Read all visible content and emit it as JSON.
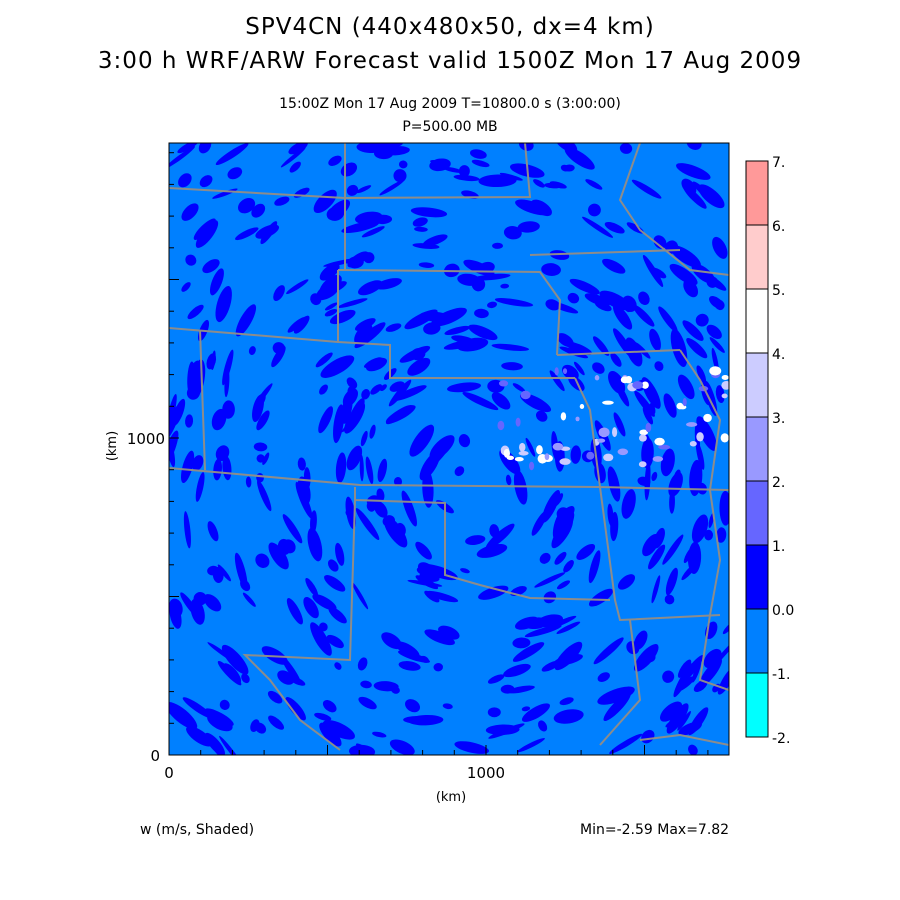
{
  "header": {
    "title": "SPV4CN (440x480x50, dx=4 km)",
    "subtitle": "3:00 h WRF/ARW Forecast valid 1500Z Mon 17 Aug 2009",
    "valid_line": "15:00Z Mon 17 Aug 2009     T=10800.0 s (3:00:00)",
    "level": "P=500.00 MB"
  },
  "axes": {
    "x_label": "(km)",
    "y_label": "(km)",
    "x_ticks": [
      "0",
      "1000"
    ],
    "y_ticks": [
      "0",
      "1000"
    ]
  },
  "colorbar": {
    "labels": [
      "7.",
      "6.",
      "5.",
      "4.",
      "3.",
      "2.",
      "1.",
      "0.0",
      "-1.",
      "-2."
    ],
    "colors": [
      "#ff9999",
      "#ffcccc",
      "#ffffff",
      "#ccccff",
      "#9999ff",
      "#6666ff",
      "#0000ff",
      "#0080ff",
      "#00ffff"
    ]
  },
  "footer": {
    "field": "w (m/s, Shaded)",
    "minmax": "Min=-2.59  Max=7.82"
  },
  "colors": {
    "background_field": "#0080ff",
    "dark_field": "#0000ff",
    "borders": "#8c8c8c"
  }
}
